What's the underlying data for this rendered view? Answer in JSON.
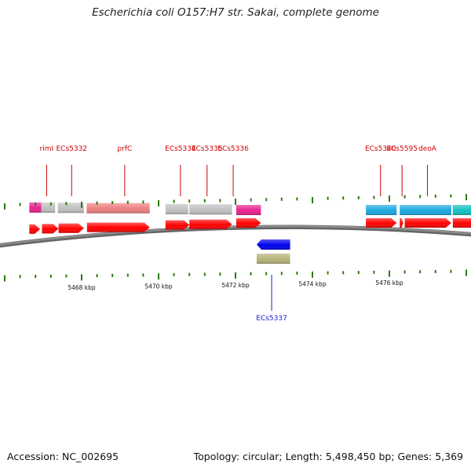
{
  "title": "Escherichia coli O157:H7 str. Sakai, complete genome",
  "footer": {
    "accession": "Accession: NC_002695",
    "summary": "Topology: circular; Length: 5,498,450 bp; Genes: 5,369"
  },
  "scale": {
    "unit": "kbp",
    "ticks": [
      {
        "kbp": 5468,
        "label": "5468 kbp"
      },
      {
        "kbp": 5470,
        "label": "5470 kbp"
      },
      {
        "kbp": 5472,
        "label": "5472 kbp"
      },
      {
        "kbp": 5474,
        "label": "5474 kbp"
      },
      {
        "kbp": 5476,
        "label": "5476 kbp"
      }
    ]
  },
  "colors": {
    "backbone": "#8c8c8c",
    "cds": "#ff0000",
    "gene_label": "#cc0000",
    "reverse_label": "#1a1acc",
    "reverse_cds": "#0000ee",
    "reverse_feature": "#b5b27a",
    "tick": "#2d7a10"
  },
  "labels": [
    {
      "name": "rimI",
      "kbp": 5467.09
    },
    {
      "name": "ECs5332",
      "kbp": 5467.74
    },
    {
      "name": "prfC",
      "kbp": 5469.12
    },
    {
      "name": "ECs5334",
      "kbp": 5470.57
    },
    {
      "name": "ECs5335",
      "kbp": 5471.26
    },
    {
      "name": "ECs5336",
      "kbp": 5471.94
    },
    {
      "name": "ECs5340",
      "kbp": 5475.77
    },
    {
      "name": "ECs5595",
      "kbp": 5476.33
    },
    {
      "name": "deoA",
      "kbp": 5476.99
    }
  ],
  "reverse_labels": [
    {
      "name": "ECs5337",
      "kbp": 5472.94
    }
  ],
  "features": [
    {
      "start": 5466.64,
      "end": 5466.95,
      "color": "#e8228f"
    },
    {
      "start": 5466.95,
      "end": 5467.31,
      "color": "#c0c0c0"
    },
    {
      "start": 5467.38,
      "end": 5468.06,
      "color": "#c0c0c0"
    },
    {
      "start": 5468.13,
      "end": 5469.77,
      "color": "#ee7f7f"
    },
    {
      "start": 5470.18,
      "end": 5470.77,
      "color": "#c0c0c0"
    },
    {
      "start": 5470.8,
      "end": 5471.91,
      "color": "#c0c0c0"
    },
    {
      "start": 5472.02,
      "end": 5472.66,
      "color": "#e8228f"
    },
    {
      "start": 5475.39,
      "end": 5476.19,
      "color": "#1aa8e0"
    },
    {
      "start": 5476.27,
      "end": 5477.61,
      "color": "#1aa8e0"
    },
    {
      "start": 5477.65,
      "end": 5478.36,
      "color": "#13c0c0"
    }
  ],
  "forward_cds": [
    {
      "start": 5466.64,
      "end": 5466.92
    },
    {
      "start": 5466.97,
      "end": 5467.4
    },
    {
      "start": 5467.4,
      "end": 5468.06
    },
    {
      "start": 5468.14,
      "end": 5469.77
    },
    {
      "start": 5470.18,
      "end": 5470.8
    },
    {
      "start": 5470.8,
      "end": 5471.91
    },
    {
      "start": 5472.02,
      "end": 5472.66
    },
    {
      "start": 5475.39,
      "end": 5476.19
    },
    {
      "start": 5476.27,
      "end": 5476.36
    },
    {
      "start": 5476.4,
      "end": 5477.61
    },
    {
      "start": 5477.65,
      "end": 5478.36
    }
  ],
  "reverse_cds": [
    {
      "start": 5472.55,
      "end": 5473.42
    }
  ],
  "reverse_features": [
    {
      "start": 5472.55,
      "end": 5473.42
    }
  ]
}
